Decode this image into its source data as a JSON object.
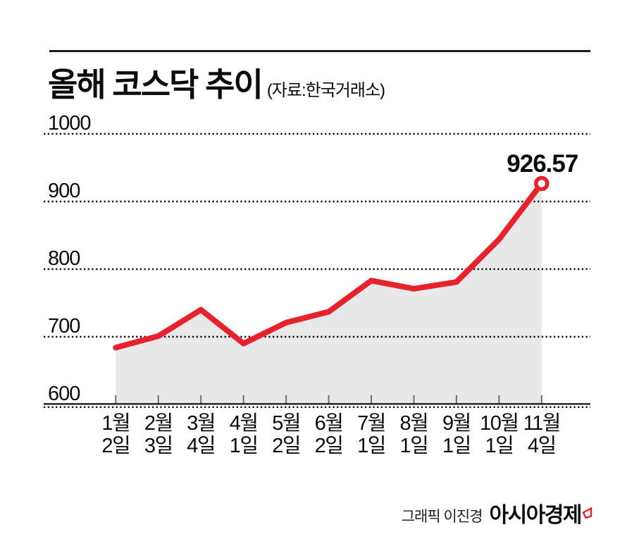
{
  "header": {
    "title": "올해 코스닥 추이",
    "source": "(자료:한국거래소)"
  },
  "chart_data": {
    "type": "area",
    "title": "올해 코스닥 추이",
    "source": "한국거래소",
    "categories": [
      "1월 2일",
      "2월 3일",
      "3월 4일",
      "4월 1일",
      "5월 2일",
      "6월 2일",
      "7월 1일",
      "8월 1일",
      "9월 1일",
      "10월 1일",
      "11월 4일"
    ],
    "x_labels_month": [
      "1월",
      "2월",
      "3월",
      "4월",
      "5월",
      "6월",
      "7월",
      "8월",
      "9월",
      "10월",
      "11월"
    ],
    "x_labels_day": [
      "2일",
      "3일",
      "4일",
      "1일",
      "2일",
      "2일",
      "1일",
      "1일",
      "1일",
      "1일",
      "4일"
    ],
    "values": [
      684,
      701,
      740,
      690,
      721,
      737,
      783,
      771,
      781,
      844,
      926.57
    ],
    "y_ticks": [
      600,
      700,
      800,
      900,
      1000
    ],
    "ylim": [
      600,
      1000
    ],
    "grid": "dotted-horizontal",
    "legend": "none",
    "annotation": {
      "index": 10,
      "label": "926.57"
    },
    "colors": {
      "line": "#e8222d",
      "fill": "#e8e8e9",
      "grid": "#111111",
      "axis": "#111111",
      "tick": "#6e6e6e",
      "text": "#0c0c0c"
    }
  },
  "footer": {
    "credit": "그래픽 이진경",
    "brand": "아시아경제"
  }
}
